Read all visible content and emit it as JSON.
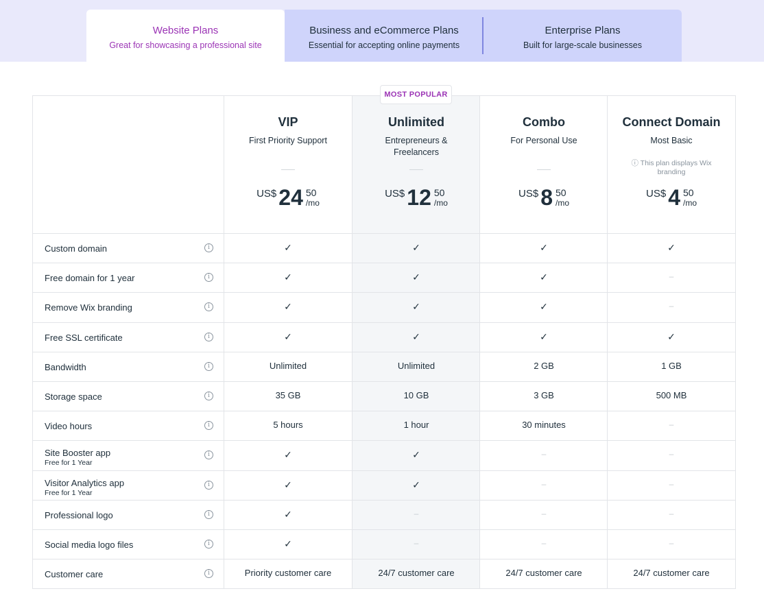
{
  "tabs": [
    {
      "title": "Website Plans",
      "subtitle": "Great for showcasing a professional site"
    },
    {
      "title": "Business and eCommerce Plans",
      "subtitle": "Essential for accepting online payments"
    },
    {
      "title": "Enterprise Plans",
      "subtitle": "Built for large-scale businesses"
    }
  ],
  "badge": "MOST POPULAR",
  "plans": [
    {
      "name": "VIP",
      "subtitle": "First Priority Support",
      "note": "",
      "currency": "US$",
      "price": "24",
      "cents": "50",
      "period": "/mo"
    },
    {
      "name": "Unlimited",
      "subtitle": "Entrepreneurs & Freelancers",
      "note": "",
      "currency": "US$",
      "price": "12",
      "cents": "50",
      "period": "/mo"
    },
    {
      "name": "Combo",
      "subtitle": "For Personal Use",
      "note": "",
      "currency": "US$",
      "price": "8",
      "cents": "50",
      "period": "/mo"
    },
    {
      "name": "Connect Domain",
      "subtitle": "Most Basic",
      "note": "ⓘ This plan displays Wix branding",
      "currency": "US$",
      "price": "4",
      "cents": "50",
      "period": "/mo"
    }
  ],
  "features": [
    {
      "label": "Custom domain",
      "sub": "",
      "values": [
        "✓",
        "✓",
        "✓",
        "✓"
      ]
    },
    {
      "label": "Free domain for 1 year",
      "sub": "",
      "values": [
        "✓",
        "✓",
        "✓",
        "–"
      ]
    },
    {
      "label": "Remove Wix branding",
      "sub": "",
      "values": [
        "✓",
        "✓",
        "✓",
        "–"
      ]
    },
    {
      "label": "Free SSL certificate",
      "sub": "",
      "values": [
        "✓",
        "✓",
        "✓",
        "✓"
      ]
    },
    {
      "label": "Bandwidth",
      "sub": "",
      "values": [
        "Unlimited",
        "Unlimited",
        "2 GB",
        "1 GB"
      ]
    },
    {
      "label": "Storage space",
      "sub": "",
      "values": [
        "35 GB",
        "10 GB",
        "3 GB",
        "500 MB"
      ]
    },
    {
      "label": "Video hours",
      "sub": "",
      "values": [
        "5 hours",
        "1 hour",
        "30 minutes",
        "–"
      ]
    },
    {
      "label": "Site Booster app",
      "sub": "Free for 1 Year",
      "values": [
        "✓",
        "✓",
        "–",
        "–"
      ]
    },
    {
      "label": "Visitor Analytics app",
      "sub": "Free for 1 Year",
      "values": [
        "✓",
        "✓",
        "–",
        "–"
      ]
    },
    {
      "label": "Professional logo",
      "sub": "",
      "values": [
        "✓",
        "–",
        "–",
        "–"
      ]
    },
    {
      "label": "Social media logo files",
      "sub": "",
      "values": [
        "✓",
        "–",
        "–",
        "–"
      ]
    },
    {
      "label": "Customer care",
      "sub": "",
      "values": [
        "Priority customer care",
        "24/7 customer care",
        "24/7 customer care",
        "24/7 customer care"
      ]
    }
  ],
  "colors": {
    "accent": "#9b34b5",
    "tab_band": "#e9e9fb",
    "tab_inactive": "#cfd4fb",
    "popular_column": "#f4f6f8"
  }
}
